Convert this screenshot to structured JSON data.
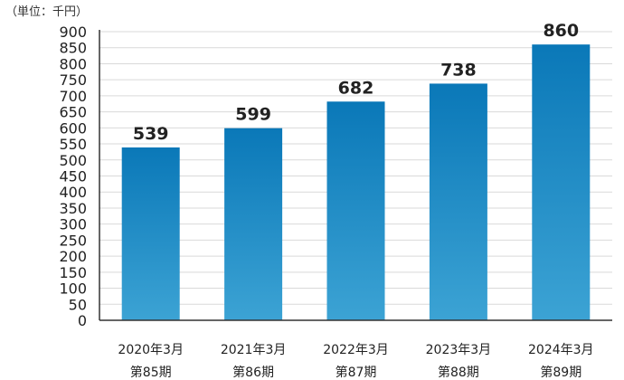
{
  "chart_data": {
    "type": "bar",
    "unit_label": "（単位：千円）",
    "categories": [
      {
        "line1": "2020年3月",
        "line2": "第85期"
      },
      {
        "line1": "2021年3月",
        "line2": "第86期"
      },
      {
        "line1": "2022年3月",
        "line2": "第87期"
      },
      {
        "line1": "2023年3月",
        "line2": "第88期"
      },
      {
        "line1": "2024年3月",
        "line2": "第89期"
      }
    ],
    "values": [
      539,
      599,
      682,
      738,
      860
    ],
    "ylim": [
      0,
      900
    ],
    "yticks": [
      0,
      50,
      100,
      150,
      200,
      250,
      300,
      350,
      400,
      450,
      500,
      550,
      600,
      650,
      700,
      750,
      800,
      850,
      900
    ],
    "grid": true,
    "colors": {
      "bar_top": "#0a78b8",
      "bar_bottom": "#3ca3d4",
      "grid": "#d9d9d9",
      "axis": "#333333",
      "text": "#222222"
    }
  }
}
